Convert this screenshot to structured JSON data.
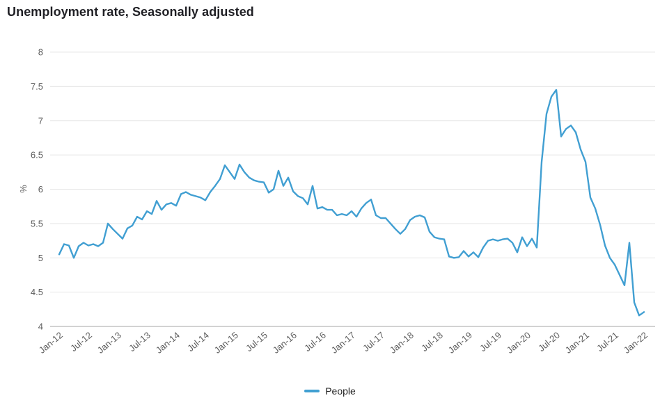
{
  "header": {
    "title": "Unemployment rate, Seasonally adjusted"
  },
  "legend": {
    "items": [
      {
        "label": "People",
        "swatch_color": "#419fd2"
      }
    ]
  },
  "chart_data": {
    "type": "line",
    "title": "Unemployment rate, Seasonally adjusted",
    "xlabel": "",
    "ylabel": "%",
    "ylim": [
      4,
      8
    ],
    "ytick_labels": [
      "8",
      "7.5",
      "7",
      "6.5",
      "6",
      "5.5",
      "5",
      "4.5",
      "4"
    ],
    "xtick_labels": [
      "Jan-12",
      "Jul-12",
      "Jan-13",
      "Jul-13",
      "Jan-14",
      "Jul-14",
      "Jan-15",
      "Jul-15",
      "Jan-16",
      "Jul-16",
      "Jan-17",
      "Jul-17",
      "Jan-18",
      "Jul-18",
      "Jan-19",
      "Jul-19",
      "Jan-20",
      "Jul-20",
      "Jan-21",
      "Jul-21",
      "Jan-22"
    ],
    "x_frequency": "monthly",
    "x_range": [
      "Jan-12",
      "Jan-22"
    ],
    "grid": "horizontal-only",
    "legend_position": "bottom-center",
    "series": [
      {
        "name": "People",
        "color": "#419fd2",
        "values": [
          5.05,
          5.2,
          5.18,
          5.0,
          5.17,
          5.22,
          5.18,
          5.2,
          5.17,
          5.22,
          5.5,
          5.42,
          5.35,
          5.28,
          5.43,
          5.47,
          5.6,
          5.56,
          5.68,
          5.64,
          5.83,
          5.7,
          5.78,
          5.8,
          5.76,
          5.93,
          5.96,
          5.92,
          5.9,
          5.88,
          5.84,
          5.96,
          6.05,
          6.15,
          6.35,
          6.25,
          6.15,
          6.36,
          6.25,
          6.17,
          6.13,
          6.11,
          6.1,
          5.95,
          6.0,
          6.27,
          6.05,
          6.17,
          5.97,
          5.9,
          5.87,
          5.78,
          6.05,
          5.72,
          5.74,
          5.7,
          5.7,
          5.62,
          5.64,
          5.62,
          5.68,
          5.6,
          5.72,
          5.8,
          5.85,
          5.62,
          5.58,
          5.58,
          5.5,
          5.42,
          5.35,
          5.42,
          5.55,
          5.6,
          5.62,
          5.59,
          5.38,
          5.3,
          5.28,
          5.27,
          5.02,
          5.0,
          5.01,
          5.1,
          5.02,
          5.08,
          5.01,
          5.15,
          5.25,
          5.27,
          5.25,
          5.27,
          5.28,
          5.22,
          5.08,
          5.3,
          5.17,
          5.28,
          5.15,
          6.4,
          7.1,
          7.35,
          7.45,
          6.77,
          6.88,
          6.93,
          6.83,
          6.58,
          6.4,
          5.88,
          5.72,
          5.48,
          5.18,
          5.0,
          4.9,
          4.75,
          4.6,
          5.22,
          4.35,
          4.16,
          4.21
        ]
      }
    ]
  }
}
